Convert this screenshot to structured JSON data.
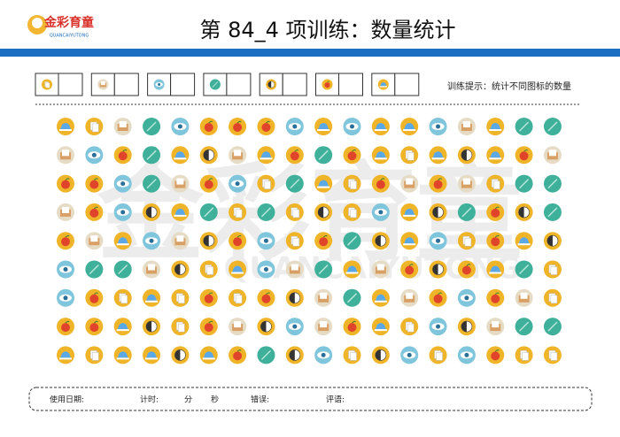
{
  "header": {
    "logo": "金彩育童",
    "logo_sub": "QUANCAIYUTONG",
    "title": "第 84_4 项训练：数量统计"
  },
  "hint": "训练提示：统计不同图标的数量",
  "watermark": {
    "main": "金彩育童",
    "sub": "QUANCAIYUTONG"
  },
  "footer": {
    "date": "使用日期:",
    "timer": "计时:",
    "minute": "分",
    "second": "秒",
    "errors": "错误:",
    "comment": "评语:"
  }
}
